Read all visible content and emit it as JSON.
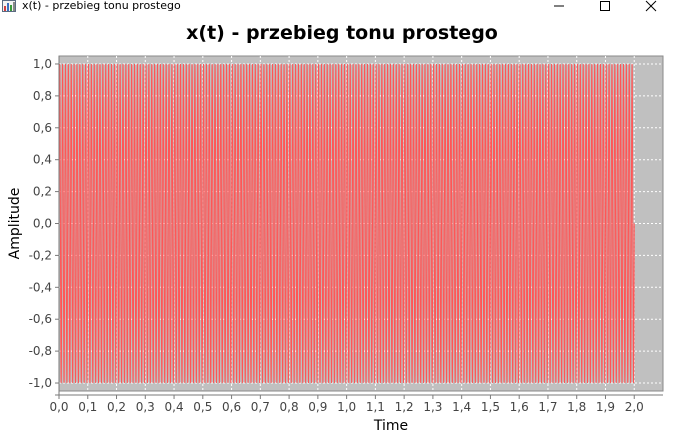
{
  "window": {
    "title": "x(t) - przebieg tonu prostego",
    "minimize_glyph": "—",
    "maximize_glyph": "☐",
    "close_glyph": "✕"
  },
  "chart_data": {
    "type": "line",
    "title": "x(t) - przebieg tonu prostego",
    "xlabel": "Time",
    "ylabel": "Amplitude",
    "xlim": [
      0.0,
      2.1
    ],
    "ylim": [
      -1.05,
      1.05
    ],
    "x_ticks": [
      "0,0",
      "0,1",
      "0,2",
      "0,3",
      "0,4",
      "0,5",
      "0,6",
      "0,7",
      "0,8",
      "0,9",
      "1,0",
      "1,1",
      "1,2",
      "1,3",
      "1,4",
      "1,5",
      "1,6",
      "1,7",
      "1,8",
      "1,9",
      "2,0"
    ],
    "y_ticks": [
      "1,0",
      "0,8",
      "0,6",
      "0,4",
      "0,2",
      "0,0",
      "-0,2",
      "-0,4",
      "-0,6",
      "-0,8",
      "-1,0"
    ],
    "series": [
      {
        "function": "sine",
        "amplitude": 1.0,
        "frequency_hz": 100,
        "t_start": 0.0,
        "t_end": 2.0,
        "color": "#ff5555"
      }
    ],
    "plot_background": "#c0c0c0",
    "grid": true,
    "grid_color": "#ffffff",
    "legend": false
  }
}
